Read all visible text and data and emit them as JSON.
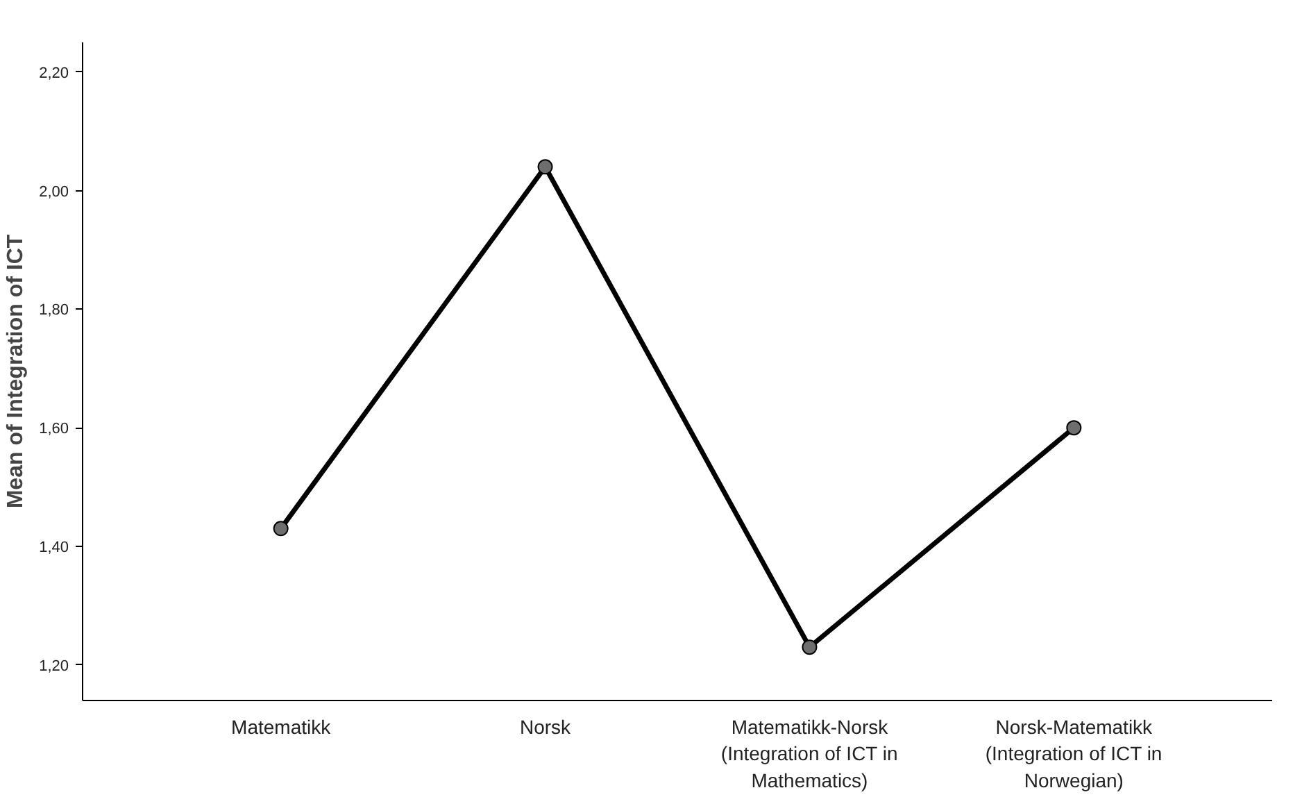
{
  "chart_data": {
    "type": "line",
    "ylabel": "Mean of Integration of ICT",
    "categories": [
      "Matematikk",
      "Norsk",
      "Matematikk-Norsk (Integration of ICT in Mathematics)",
      "Norsk-Matematikk (Integration of ICT in Norwegian)"
    ],
    "values": [
      1.43,
      2.04,
      1.23,
      1.6
    ],
    "color": "#000000",
    "marker": "circle",
    "line_style": "solid",
    "ylim": [
      1.14,
      2.25
    ],
    "yticks": [
      {
        "value": 1.2,
        "label": "1,20"
      },
      {
        "value": 1.4,
        "label": "1,40"
      },
      {
        "value": 1.6,
        "label": "1,60"
      },
      {
        "value": 1.8,
        "label": "1,80"
      },
      {
        "value": 2.0,
        "label": "2,00"
      },
      {
        "value": 2.2,
        "label": "2,20"
      }
    ],
    "grid": false
  }
}
